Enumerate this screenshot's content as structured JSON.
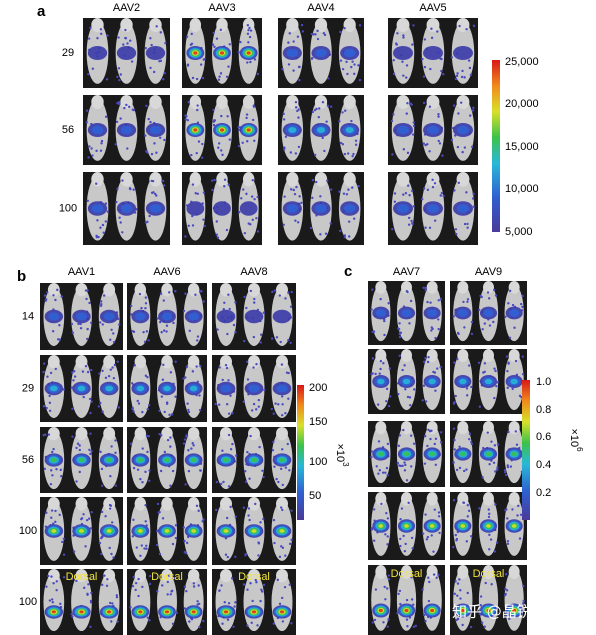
{
  "panel_a": {
    "label": "a",
    "columns": [
      "AAV2",
      "AAV3",
      "AAV4",
      "AAV5"
    ],
    "rows": [
      "29",
      "56",
      "100"
    ],
    "colorbar_ticks": [
      "25,000",
      "20,000",
      "15,000",
      "10,000",
      "5,000"
    ]
  },
  "panel_b": {
    "label": "b",
    "columns": [
      "AAV1",
      "AAV6",
      "AAV8"
    ],
    "rows": [
      "14",
      "29",
      "56",
      "100",
      "100"
    ],
    "view_label": "Dorsal",
    "colorbar_ticks": [
      "200",
      "150",
      "100",
      "50"
    ],
    "colorbar_unit": "×10",
    "colorbar_exponent": "3"
  },
  "panel_c": {
    "label": "c",
    "columns": [
      "AAV7",
      "AAV9"
    ],
    "view_label": "Dorsal",
    "colorbar_ticks": [
      "1.0",
      "0.8",
      "0.6",
      "0.4",
      "0.2"
    ],
    "colorbar_unit": "×10",
    "colorbar_exponent": "6"
  },
  "watermark": "知乎 @晶锐生物"
}
